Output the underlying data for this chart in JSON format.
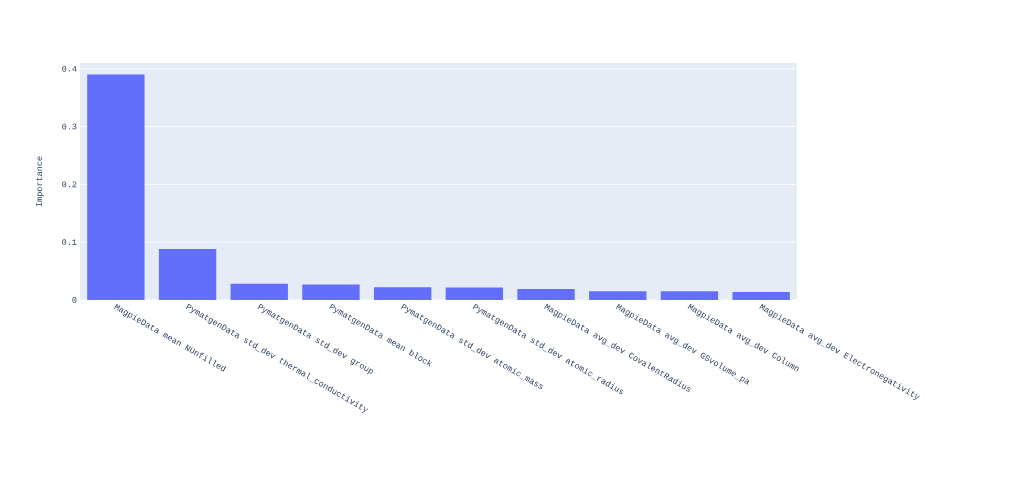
{
  "chart_data": {
    "type": "bar",
    "ylabel": "Importance",
    "categories": [
      "MagpieData mean NUnfilled",
      "PymatgenData std_dev thermal_conductivity",
      "PymatgenData std_dev group",
      "PymatgenData mean block",
      "PymatgenData std_dev atomic_mass",
      "PymatgenData std_dev atomic_radius",
      "MagpieData avg_dev CovalentRadius",
      "MagpieData avg_dev GSvolume_pa",
      "MagpieData avg_dev Column",
      "MagpieData avg_dev Electronegativity"
    ],
    "values": [
      0.39,
      0.088,
      0.028,
      0.027,
      0.022,
      0.0215,
      0.019,
      0.015,
      0.015,
      0.014
    ],
    "color": "#636efa",
    "ylim": [
      0,
      0.41
    ],
    "yticks": [
      0,
      0.1,
      0.2,
      0.3,
      0.4
    ],
    "grid": "y"
  }
}
